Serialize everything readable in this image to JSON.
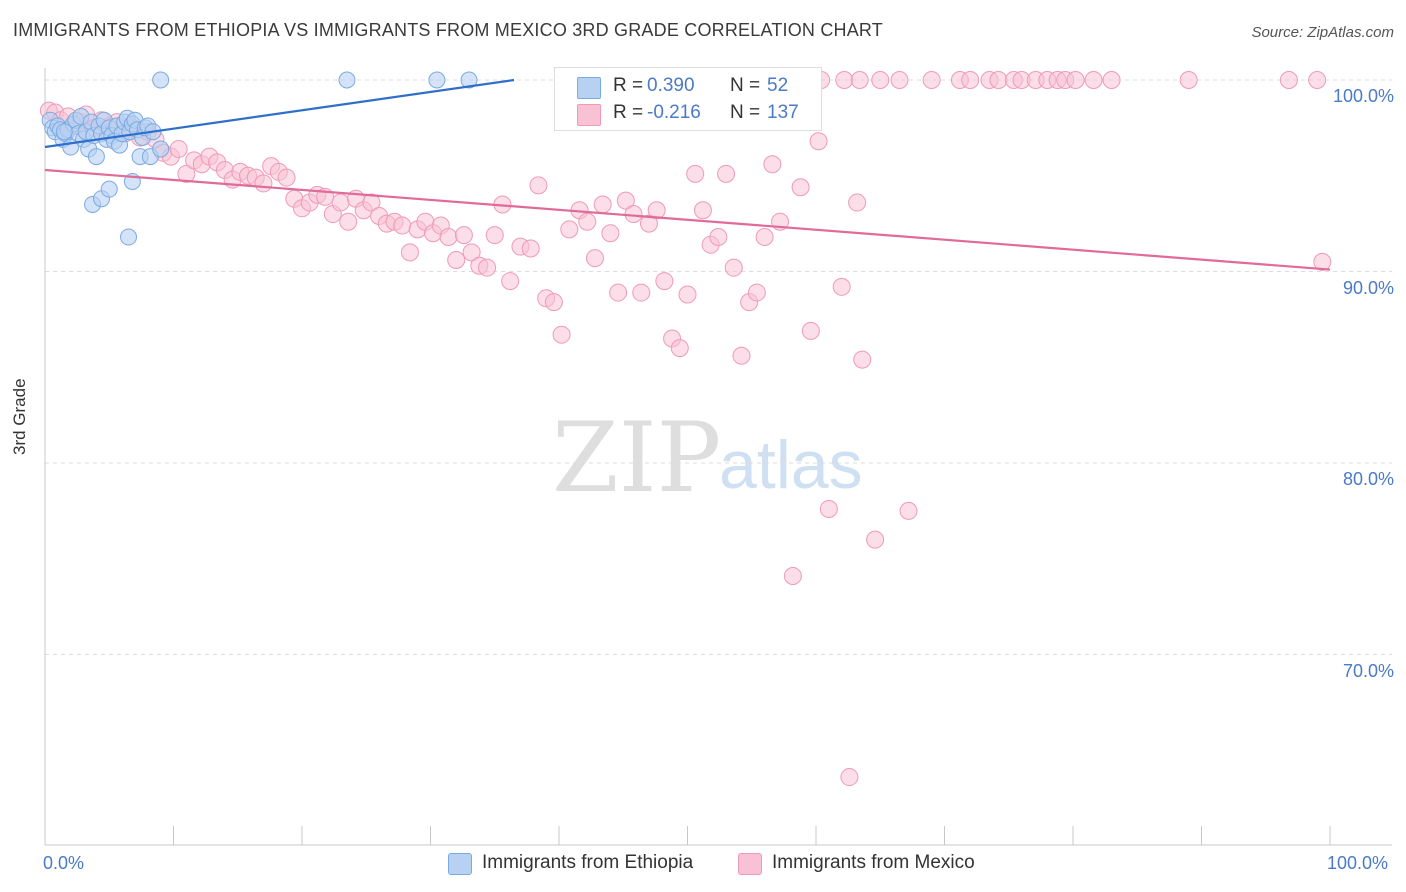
{
  "header": {
    "title": "IMMIGRANTS FROM ETHIOPIA VS IMMIGRANTS FROM MEXICO 3RD GRADE CORRELATION CHART",
    "source": "Source: ZipAtlas.com"
  },
  "watermark": {
    "zip": "ZIP",
    "atlas": "atlas"
  },
  "legend_stats": {
    "ethiopia": {
      "r_label": "R =",
      "r_value": "0.390",
      "n_label": "N =",
      "n_value": "52"
    },
    "mexico": {
      "r_label": "R =",
      "r_value": "-0.216",
      "n_label": "N =",
      "n_value": "137"
    }
  },
  "colors": {
    "ethiopia_fill": "#b7d1f2",
    "ethiopia_stroke": "#7aaae3",
    "ethiopia_line": "#2f6fcc",
    "mexico_fill": "#f8c2d4",
    "mexico_stroke": "#f09ab8",
    "mexico_line": "#e06a98",
    "tick_label": "#4a7ac8",
    "grid": "#dcdcdc"
  },
  "chart_data": {
    "type": "scatter",
    "title": "IMMIGRANTS FROM ETHIOPIA VS IMMIGRANTS FROM MEXICO 3RD GRADE CORRELATION CHART",
    "xlabel": "",
    "ylabel": "3rd Grade",
    "xlim": [
      0,
      100
    ],
    "ylim": [
      60.5,
      100.8
    ],
    "x_tick_labels": [
      "0.0%",
      "100.0%"
    ],
    "y_ticks": [
      70,
      80,
      90,
      100
    ],
    "y_tick_labels": [
      "70.0%",
      "80.0%",
      "90.0%",
      "100.0%"
    ],
    "grid": true,
    "legend_position": "bottom",
    "series": [
      {
        "name": "Immigrants from Ethiopia",
        "trend": {
          "x": [
            0,
            36.5
          ],
          "y": [
            96.5,
            100
          ]
        },
        "points": [
          [
            0.4,
            97.9
          ],
          [
            0.6,
            97.5
          ],
          [
            0.8,
            97.3
          ],
          [
            1.0,
            97.6
          ],
          [
            1.2,
            97.4
          ],
          [
            1.4,
            96.9
          ],
          [
            1.6,
            97.2
          ],
          [
            1.8,
            97.4
          ],
          [
            2.0,
            96.5
          ],
          [
            2.2,
            97.7
          ],
          [
            2.4,
            97.9
          ],
          [
            2.6,
            97.2
          ],
          [
            2.8,
            98.1
          ],
          [
            3.0,
            96.9
          ],
          [
            3.2,
            97.3
          ],
          [
            3.4,
            96.4
          ],
          [
            3.6,
            97.8
          ],
          [
            3.8,
            97.1
          ],
          [
            4.0,
            96.0
          ],
          [
            4.2,
            97.6
          ],
          [
            4.4,
            97.2
          ],
          [
            4.6,
            97.9
          ],
          [
            4.8,
            96.9
          ],
          [
            5.0,
            97.5
          ],
          [
            5.2,
            97.1
          ],
          [
            5.4,
            96.8
          ],
          [
            5.6,
            97.6
          ],
          [
            5.8,
            96.6
          ],
          [
            6.0,
            97.2
          ],
          [
            6.2,
            97.8
          ],
          [
            6.4,
            98.0
          ],
          [
            6.6,
            97.3
          ],
          [
            6.8,
            97.7
          ],
          [
            7.0,
            97.9
          ],
          [
            7.2,
            97.4
          ],
          [
            7.4,
            96.0
          ],
          [
            7.6,
            97.0
          ],
          [
            7.8,
            97.5
          ],
          [
            8.0,
            97.6
          ],
          [
            8.2,
            96.0
          ],
          [
            8.4,
            97.3
          ],
          [
            9.0,
            96.4
          ],
          [
            1.5,
            97.3
          ],
          [
            3.7,
            93.5
          ],
          [
            4.4,
            93.8
          ],
          [
            5.0,
            94.3
          ],
          [
            6.5,
            91.8
          ],
          [
            6.8,
            94.7
          ],
          [
            9.0,
            100
          ],
          [
            23.5,
            100
          ],
          [
            30.5,
            100
          ],
          [
            33.0,
            100
          ]
        ]
      },
      {
        "name": "Immigrants from Mexico",
        "trend": {
          "x": [
            0,
            100
          ],
          "y": [
            95.3,
            90.1
          ]
        },
        "points": [
          [
            0.3,
            98.4
          ],
          [
            0.8,
            98.3
          ],
          [
            1.2,
            97.9
          ],
          [
            1.8,
            98.1
          ],
          [
            2.2,
            97.6
          ],
          [
            2.8,
            97.8
          ],
          [
            3.2,
            98.2
          ],
          [
            3.8,
            97.5
          ],
          [
            4.4,
            97.9
          ],
          [
            5.0,
            97.6
          ],
          [
            5.6,
            97.8
          ],
          [
            6.2,
            97.2
          ],
          [
            6.8,
            97.5
          ],
          [
            7.4,
            97.0
          ],
          [
            8.0,
            97.3
          ],
          [
            8.6,
            96.9
          ],
          [
            9.2,
            96.2
          ],
          [
            9.8,
            96.0
          ],
          [
            10.4,
            96.4
          ],
          [
            11.0,
            95.1
          ],
          [
            11.6,
            95.8
          ],
          [
            12.2,
            95.6
          ],
          [
            12.8,
            96.0
          ],
          [
            13.4,
            95.7
          ],
          [
            14.0,
            95.3
          ],
          [
            14.6,
            94.8
          ],
          [
            15.2,
            95.2
          ],
          [
            15.8,
            95.0
          ],
          [
            16.4,
            94.9
          ],
          [
            17.0,
            94.6
          ],
          [
            17.6,
            95.5
          ],
          [
            18.2,
            95.2
          ],
          [
            18.8,
            94.9
          ],
          [
            19.4,
            93.8
          ],
          [
            20.0,
            93.3
          ],
          [
            20.6,
            93.6
          ],
          [
            21.2,
            94.0
          ],
          [
            21.8,
            93.9
          ],
          [
            22.4,
            93.0
          ],
          [
            23.0,
            93.6
          ],
          [
            23.6,
            92.6
          ],
          [
            24.2,
            93.8
          ],
          [
            24.8,
            93.2
          ],
          [
            25.4,
            93.6
          ],
          [
            26.0,
            92.9
          ],
          [
            26.6,
            92.5
          ],
          [
            27.2,
            92.6
          ],
          [
            27.8,
            92.4
          ],
          [
            28.4,
            91.0
          ],
          [
            29.0,
            92.2
          ],
          [
            29.6,
            92.6
          ],
          [
            30.2,
            92.0
          ],
          [
            30.8,
            92.4
          ],
          [
            31.4,
            91.8
          ],
          [
            32.0,
            90.6
          ],
          [
            32.6,
            91.9
          ],
          [
            33.2,
            91.0
          ],
          [
            33.8,
            90.3
          ],
          [
            34.4,
            90.2
          ],
          [
            35.0,
            91.9
          ],
          [
            35.6,
            93.5
          ],
          [
            36.2,
            89.5
          ],
          [
            37.0,
            91.3
          ],
          [
            37.8,
            91.2
          ],
          [
            38.4,
            94.5
          ],
          [
            39.0,
            88.6
          ],
          [
            39.6,
            88.4
          ],
          [
            40.2,
            86.7
          ],
          [
            40.8,
            92.2
          ],
          [
            41.6,
            93.2
          ],
          [
            42.2,
            92.6
          ],
          [
            42.8,
            90.7
          ],
          [
            43.4,
            93.5
          ],
          [
            44.0,
            92.0
          ],
          [
            44.6,
            88.9
          ],
          [
            45.2,
            93.7
          ],
          [
            45.8,
            93.0
          ],
          [
            46.4,
            88.9
          ],
          [
            47.0,
            92.5
          ],
          [
            47.6,
            93.2
          ],
          [
            48.2,
            89.5
          ],
          [
            48.8,
            86.5
          ],
          [
            49.4,
            86.0
          ],
          [
            50.0,
            88.8
          ],
          [
            50.6,
            95.1
          ],
          [
            51.2,
            93.2
          ],
          [
            51.8,
            91.4
          ],
          [
            52.4,
            91.8
          ],
          [
            53.0,
            95.1
          ],
          [
            53.6,
            90.2
          ],
          [
            54.2,
            85.6
          ],
          [
            54.8,
            88.4
          ],
          [
            55.4,
            88.9
          ],
          [
            56.0,
            91.8
          ],
          [
            56.6,
            95.6
          ],
          [
            57.2,
            92.6
          ],
          [
            58.2,
            74.1
          ],
          [
            58.8,
            94.4
          ],
          [
            59.6,
            86.9
          ],
          [
            60.2,
            96.8
          ],
          [
            61.0,
            77.6
          ],
          [
            62.0,
            89.2
          ],
          [
            62.6,
            63.6
          ],
          [
            63.2,
            93.6
          ],
          [
            63.6,
            85.4
          ],
          [
            64.6,
            76.0
          ],
          [
            67.2,
            77.5
          ],
          [
            99.4,
            90.5
          ],
          [
            47.5,
            100
          ],
          [
            48.0,
            100
          ],
          [
            53.5,
            100
          ],
          [
            55.0,
            100
          ],
          [
            57.5,
            100
          ],
          [
            58.2,
            100
          ],
          [
            60.4,
            100
          ],
          [
            62.2,
            100
          ],
          [
            63.4,
            100
          ],
          [
            65.0,
            100
          ],
          [
            66.5,
            100
          ],
          [
            69.0,
            100
          ],
          [
            71.2,
            100
          ],
          [
            72.0,
            100
          ],
          [
            73.5,
            100
          ],
          [
            74.2,
            100
          ],
          [
            75.4,
            100
          ],
          [
            76.0,
            100
          ],
          [
            77.1,
            100
          ],
          [
            78.0,
            100
          ],
          [
            78.8,
            100
          ],
          [
            79.4,
            100
          ],
          [
            80.2,
            100
          ],
          [
            81.6,
            100
          ],
          [
            83.0,
            100
          ],
          [
            89.0,
            100
          ],
          [
            96.8,
            100
          ],
          [
            99.0,
            100
          ]
        ]
      }
    ]
  },
  "legend_bottom": {
    "ethiopia_label": "Immigrants from Ethiopia",
    "mexico_label": "Immigrants from Mexico"
  }
}
